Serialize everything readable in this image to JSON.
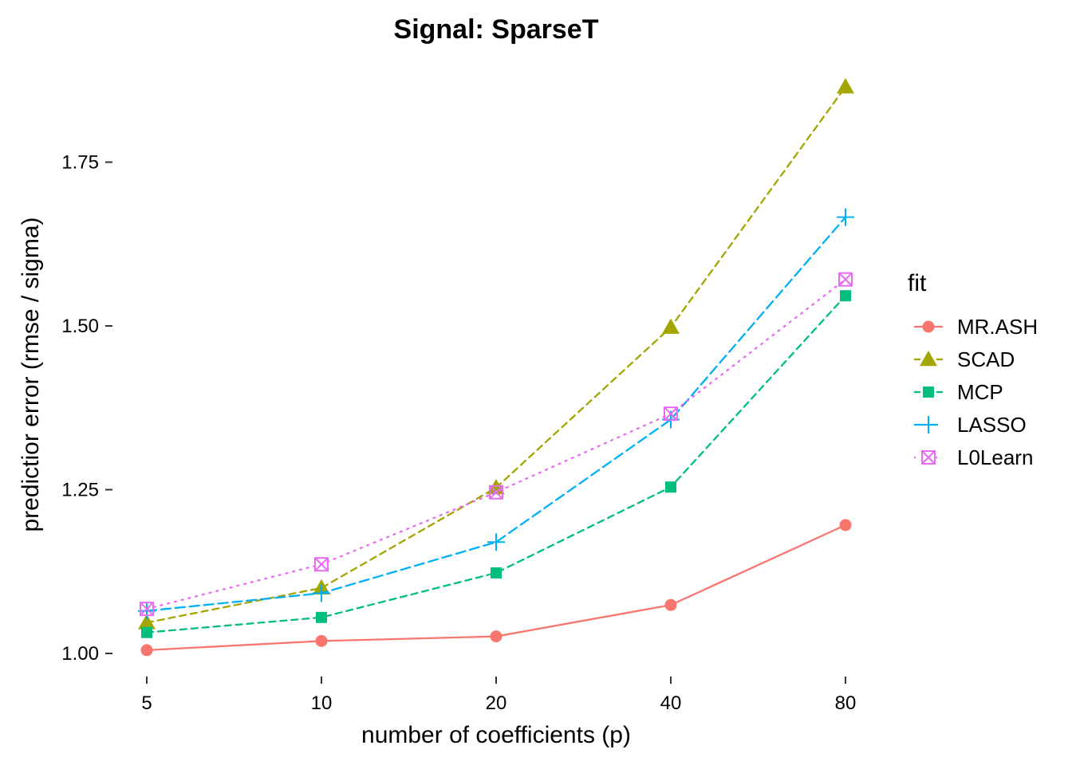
{
  "chart_data": {
    "type": "line",
    "title": "Signal: SparseT",
    "xlabel": "number of coefficients (p)",
    "ylabel": "predictior error (rmse / sigma)",
    "x": [
      5,
      10,
      20,
      40,
      80
    ],
    "x_tick_labels": [
      "5",
      "10",
      "20",
      "40",
      "80"
    ],
    "x_scale": "log2",
    "y_ticks": [
      1.0,
      1.25,
      1.5,
      1.75
    ],
    "y_tick_labels": [
      "1.00",
      "1.25",
      "1.50",
      "1.75"
    ],
    "ylim": [
      0.97,
      1.89
    ],
    "grid": false,
    "legend_title": "fit",
    "legend_position": "right",
    "series": [
      {
        "name": "MR.ASH",
        "color": "#F8766D",
        "marker": "circle",
        "linestyle": "solid",
        "values": [
          1.005,
          1.019,
          1.026,
          1.074,
          1.196
        ]
      },
      {
        "name": "SCAD",
        "color": "#A3A500",
        "marker": "triangle",
        "linestyle": "dashed",
        "values": [
          1.047,
          1.1,
          1.253,
          1.498,
          1.865
        ]
      },
      {
        "name": "MCP",
        "color": "#00BF7D",
        "marker": "square",
        "linestyle": "dashed",
        "values": [
          1.032,
          1.055,
          1.123,
          1.254,
          1.546
        ]
      },
      {
        "name": "LASSO",
        "color": "#00B0F6",
        "marker": "plus",
        "linestyle": "longdash",
        "values": [
          1.065,
          1.092,
          1.17,
          1.357,
          1.666
        ]
      },
      {
        "name": "L0Learn",
        "color": "#E76BF3",
        "marker": "boxed-x",
        "linestyle": "dotted",
        "values": [
          1.068,
          1.136,
          1.246,
          1.366,
          1.571
        ]
      }
    ]
  }
}
